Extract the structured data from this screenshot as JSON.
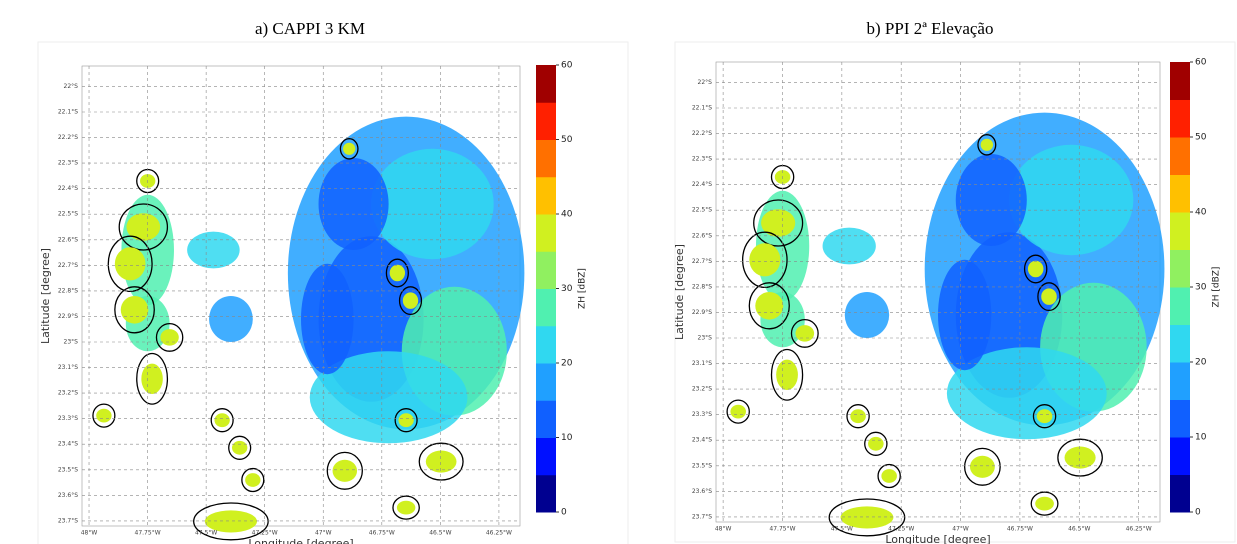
{
  "chart_data": [
    {
      "type": "radar-map",
      "title": "a)  CAPPI 3 KM",
      "xlabel": "Longitude [degree]",
      "ylabel": "Latitude [degree]",
      "xlim": [
        48.03,
        46.16
      ],
      "ylim": [
        21.92,
        23.72
      ],
      "grid": true,
      "xticks": [
        {
          "value": 48,
          "label": "48°W"
        },
        {
          "value": 47.75,
          "label": "47.75°W"
        },
        {
          "value": 47.5,
          "label": "47.5°W"
        },
        {
          "value": 47.25,
          "label": "47.25°W"
        },
        {
          "value": 47,
          "label": "47°W"
        },
        {
          "value": 46.75,
          "label": "46.75°W"
        },
        {
          "value": 46.5,
          "label": "46.5°W"
        },
        {
          "value": 46.25,
          "label": "46.25°W"
        }
      ],
      "yticks": [
        {
          "value": 22,
          "label": "22°S"
        },
        {
          "value": 22.1,
          "label": "22.1°S"
        },
        {
          "value": 22.2,
          "label": "22.2°S"
        },
        {
          "value": 22.3,
          "label": "22.3°S"
        },
        {
          "value": 22.4,
          "label": "22.4°S"
        },
        {
          "value": 22.5,
          "label": "22.5°S"
        },
        {
          "value": 22.6,
          "label": "22.6°S"
        },
        {
          "value": 22.7,
          "label": "22.7°S"
        },
        {
          "value": 22.8,
          "label": "22.8°S"
        },
        {
          "value": 22.9,
          "label": "22.9°S"
        },
        {
          "value": 23,
          "label": "23°S"
        },
        {
          "value": 23.1,
          "label": "23.1°S"
        },
        {
          "value": 23.2,
          "label": "23.2°S"
        },
        {
          "value": 23.3,
          "label": "23.3°S"
        },
        {
          "value": 23.4,
          "label": "23.4°S"
        },
        {
          "value": 23.5,
          "label": "23.5°S"
        },
        {
          "value": 23.6,
          "label": "23.6°S"
        },
        {
          "value": 23.7,
          "label": "23.7°S"
        }
      ],
      "colorbar": {
        "label": "ZH [dBZ]",
        "lim": [
          0,
          60
        ],
        "ticks": [
          0,
          10,
          20,
          30,
          40,
          50,
          60
        ],
        "colors": [
          "#000090",
          "#0010ff",
          "#1060ff",
          "#20a0ff",
          "#30d8f0",
          "#50f0b0",
          "#90f060",
          "#d0f020",
          "#ffc000",
          "#ff7000",
          "#ff2000",
          "#a00000"
        ]
      }
    },
    {
      "type": "radar-map",
      "title": "b) PPI 2ª Elevação",
      "xlabel": "Longitude [degree]",
      "ylabel": "Latitude [degree]",
      "xlim": [
        48.03,
        46.16
      ],
      "ylim": [
        21.92,
        23.72
      ],
      "grid": true,
      "xticks": [
        {
          "value": 48,
          "label": "48°W"
        },
        {
          "value": 47.75,
          "label": "47.75°W"
        },
        {
          "value": 47.5,
          "label": "47.5°W"
        },
        {
          "value": 47.25,
          "label": "47.25°W"
        },
        {
          "value": 47,
          "label": "47°W"
        },
        {
          "value": 46.75,
          "label": "46.75°W"
        },
        {
          "value": 46.5,
          "label": "46.5°W"
        },
        {
          "value": 46.25,
          "label": "46.25°W"
        }
      ],
      "yticks": [
        {
          "value": 22,
          "label": "22°S"
        },
        {
          "value": 22.1,
          "label": "22.1°S"
        },
        {
          "value": 22.2,
          "label": "22.2°S"
        },
        {
          "value": 22.3,
          "label": "22.3°S"
        },
        {
          "value": 22.4,
          "label": "22.4°S"
        },
        {
          "value": 22.5,
          "label": "22.5°S"
        },
        {
          "value": 22.6,
          "label": "22.6°S"
        },
        {
          "value": 22.7,
          "label": "22.7°S"
        },
        {
          "value": 22.8,
          "label": "22.8°S"
        },
        {
          "value": 22.9,
          "label": "22.9°S"
        },
        {
          "value": 23,
          "label": "23°S"
        },
        {
          "value": 23.1,
          "label": "23.1°S"
        },
        {
          "value": 23.2,
          "label": "23.2°S"
        },
        {
          "value": 23.3,
          "label": "23.3°S"
        },
        {
          "value": 23.4,
          "label": "23.4°S"
        },
        {
          "value": 23.5,
          "label": "23.5°S"
        },
        {
          "value": 23.6,
          "label": "23.6°S"
        },
        {
          "value": 23.7,
          "label": "23.7°S"
        }
      ],
      "colorbar": {
        "label": "ZH [dBZ]",
        "lim": [
          0,
          60
        ],
        "ticks": [
          0,
          10,
          20,
          30,
          40,
          50,
          60
        ],
        "colors": [
          "#000090",
          "#0010ff",
          "#1060ff",
          "#20a0ff",
          "#30d8f0",
          "#50f0b0",
          "#90f060",
          "#d0f020",
          "#ffc000",
          "#ff7000",
          "#ff2000",
          "#a00000"
        ]
      }
    }
  ]
}
